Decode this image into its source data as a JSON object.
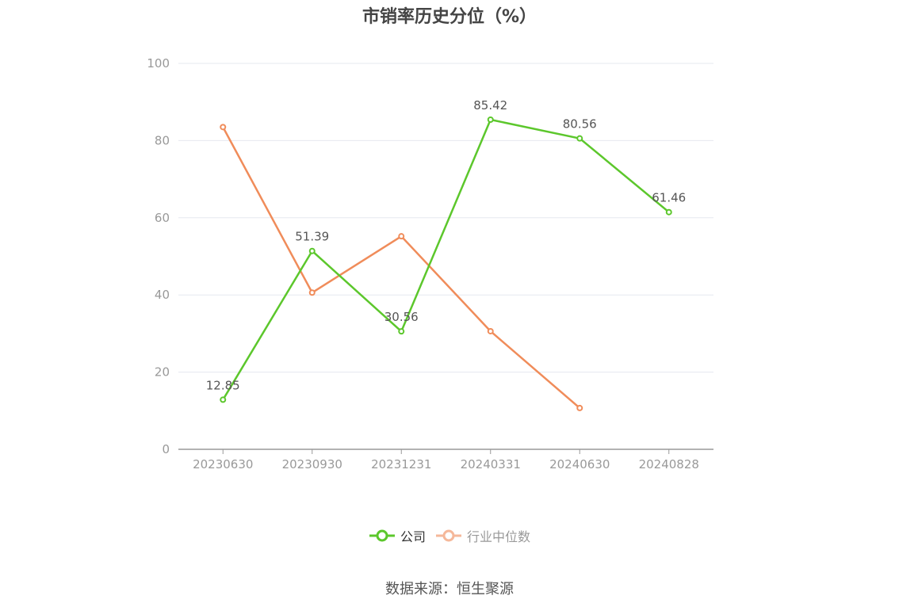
{
  "title": "市销率历史分位（%）",
  "source": "数据来源：恒生聚源",
  "chart_data": {
    "type": "line",
    "title": "市销率历史分位（%）",
    "categories": [
      "20230630",
      "20230930",
      "20231231",
      "20240331",
      "20240630",
      "20240828"
    ],
    "ylim": [
      0,
      100
    ],
    "yticks": [
      0,
      20,
      40,
      60,
      80,
      100
    ],
    "grid": true,
    "legend_position": "bottom",
    "series": [
      {
        "name": "公司",
        "color": "#5cc72c",
        "values": [
          12.85,
          51.39,
          30.56,
          85.42,
          80.56,
          61.46
        ],
        "labels": [
          "12.85",
          "51.39",
          "30.56",
          "85.42",
          "80.56",
          "61.46"
        ]
      },
      {
        "name": "行业中位数",
        "color": "#f08c5a",
        "legend_color": "#f5b89a",
        "values": [
          83.5,
          40.6,
          55.2,
          30.6,
          10.7,
          null
        ]
      }
    ]
  }
}
